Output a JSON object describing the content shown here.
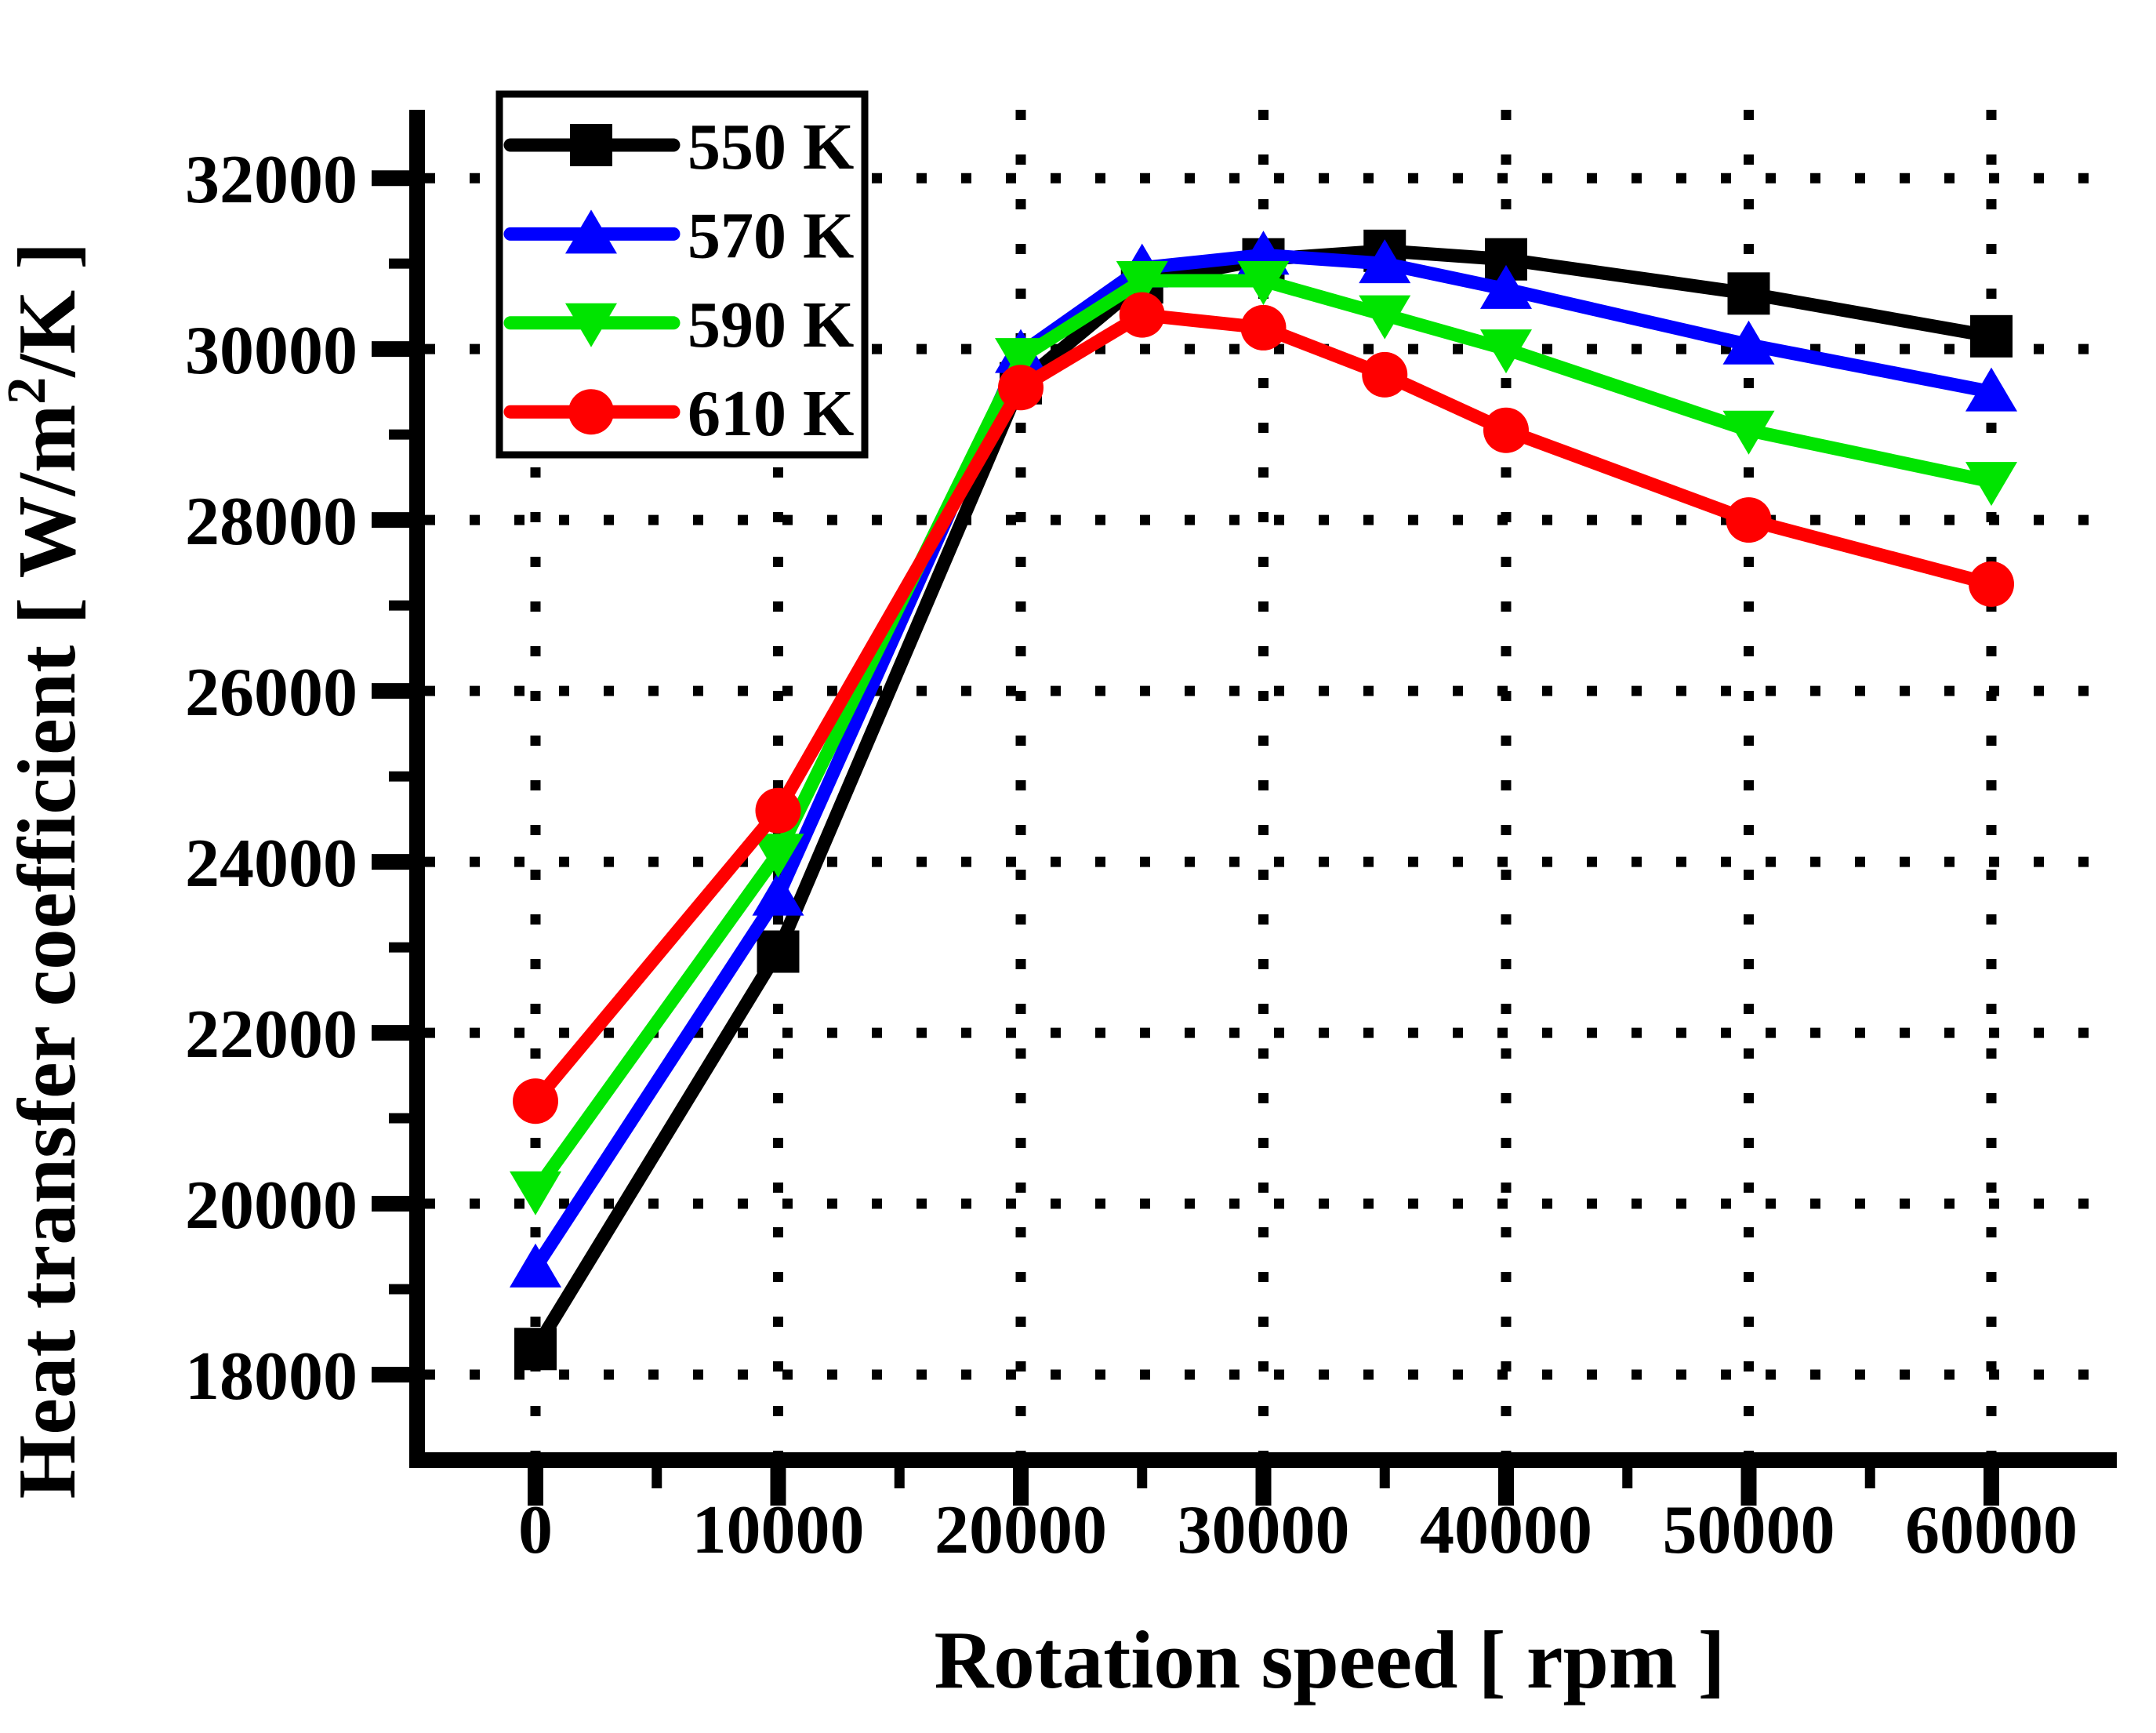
{
  "chart_data": {
    "type": "line",
    "title": "",
    "xlabel": "Rotation speed [ rpm ]",
    "ylabel_parts": [
      "Heat transfer coefficient [ W/m",
      "2",
      "/K ]"
    ],
    "xlim": [
      -4879,
      65170
    ],
    "ylim": [
      17000,
      32800
    ],
    "x_major_ticks": [
      0,
      10000,
      20000,
      30000,
      40000,
      50000,
      60000
    ],
    "x_minor_ticks": [
      5000,
      15000,
      25000,
      35000,
      45000,
      55000
    ],
    "y_major_ticks": [
      18000,
      20000,
      22000,
      24000,
      26000,
      28000,
      30000,
      32000
    ],
    "y_minor_ticks": [
      19000,
      21000,
      23000,
      25000,
      27000,
      29000,
      31000
    ],
    "grid": "dotted-major",
    "legend_position": "top-left",
    "x": [
      0,
      10000,
      20000,
      25000,
      30000,
      35000,
      40000,
      50000,
      60000
    ],
    "series": [
      {
        "name": "550 K",
        "color": "#000000",
        "marker": "square",
        "values": [
          18300,
          22950,
          29600,
          30780,
          31050,
          31150,
          31050,
          30650,
          30150
        ]
      },
      {
        "name": "570 K",
        "color": "#0000FF",
        "marker": "triangle-up",
        "values": [
          19250,
          23600,
          29950,
          30950,
          31100,
          31000,
          30700,
          30050,
          29500
        ]
      },
      {
        "name": "590 K",
        "color": "#00E400",
        "marker": "triangle-down",
        "values": [
          20150,
          24100,
          29900,
          30800,
          30800,
          30400,
          30000,
          29050,
          28450
        ]
      },
      {
        "name": "610 K",
        "color": "#FF0000",
        "marker": "circle",
        "values": [
          21200,
          24600,
          29550,
          30400,
          30250,
          29700,
          29050,
          28000,
          27250
        ]
      }
    ]
  }
}
